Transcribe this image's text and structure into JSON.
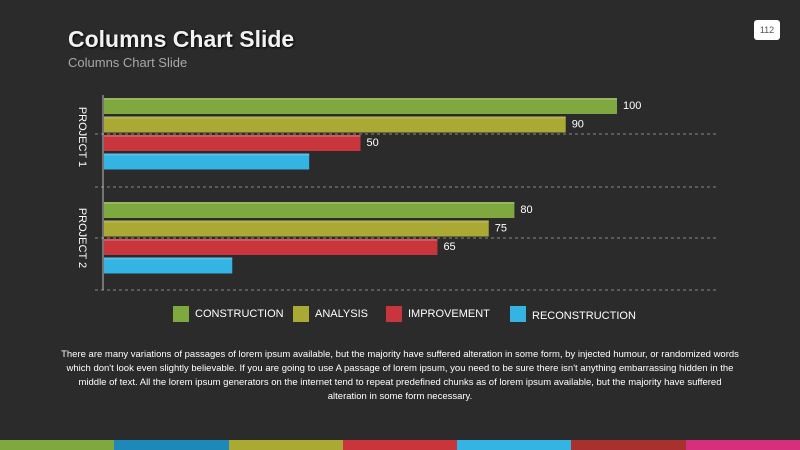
{
  "slide": {
    "title": "Columns Chart Slide",
    "subtitle": "Columns Chart Slide",
    "page_number": "112",
    "body_text": "There are many variations of passages of lorem ipsum available, but the majority have suffered alteration in some form, by injected humour, or randomized words which don't look even slightly believable. If you are going to use A passage of lorem ipsum, you need to be sure there isn't anything embarrassing hidden in the middle of text. All the lorem ipsum generators on the internet tend to repeat predefined chunks as of lorem ipsum available, but the majority have suffered alteration in some form necessary."
  },
  "colors": {
    "background": "#2b2b2b",
    "construction": "#7fa83e",
    "analysis": "#a9a934",
    "improvement": "#c8363c",
    "reconstruction": "#33b4e3"
  },
  "footer_colors": [
    "#7fa83e",
    "#1e88b8",
    "#a9a934",
    "#c8363c",
    "#33b4e3",
    "#a8302f",
    "#d62f7b"
  ],
  "chart_data": {
    "type": "bar",
    "orientation": "horizontal",
    "categories": [
      "PROJECT 1",
      "PROJECT 2"
    ],
    "series": [
      {
        "name": "CONSTRUCTION",
        "color": "#7fa83e",
        "values": [
          100,
          80
        ]
      },
      {
        "name": "ANALYSIS",
        "color": "#a9a934",
        "values": [
          90,
          75
        ]
      },
      {
        "name": "IMPROVEMENT",
        "color": "#c8363c",
        "values": [
          50,
          65
        ]
      },
      {
        "name": "RECONSTRUCTION",
        "color": "#33b4e3",
        "values": [
          40,
          25
        ]
      }
    ],
    "data_labels": [
      [
        "100",
        "90",
        "50",
        ""
      ],
      [
        "80",
        "75",
        "65",
        ""
      ]
    ],
    "xlim": [
      0,
      100
    ],
    "grid": "dashed-horizontal",
    "legend_position": "bottom"
  }
}
